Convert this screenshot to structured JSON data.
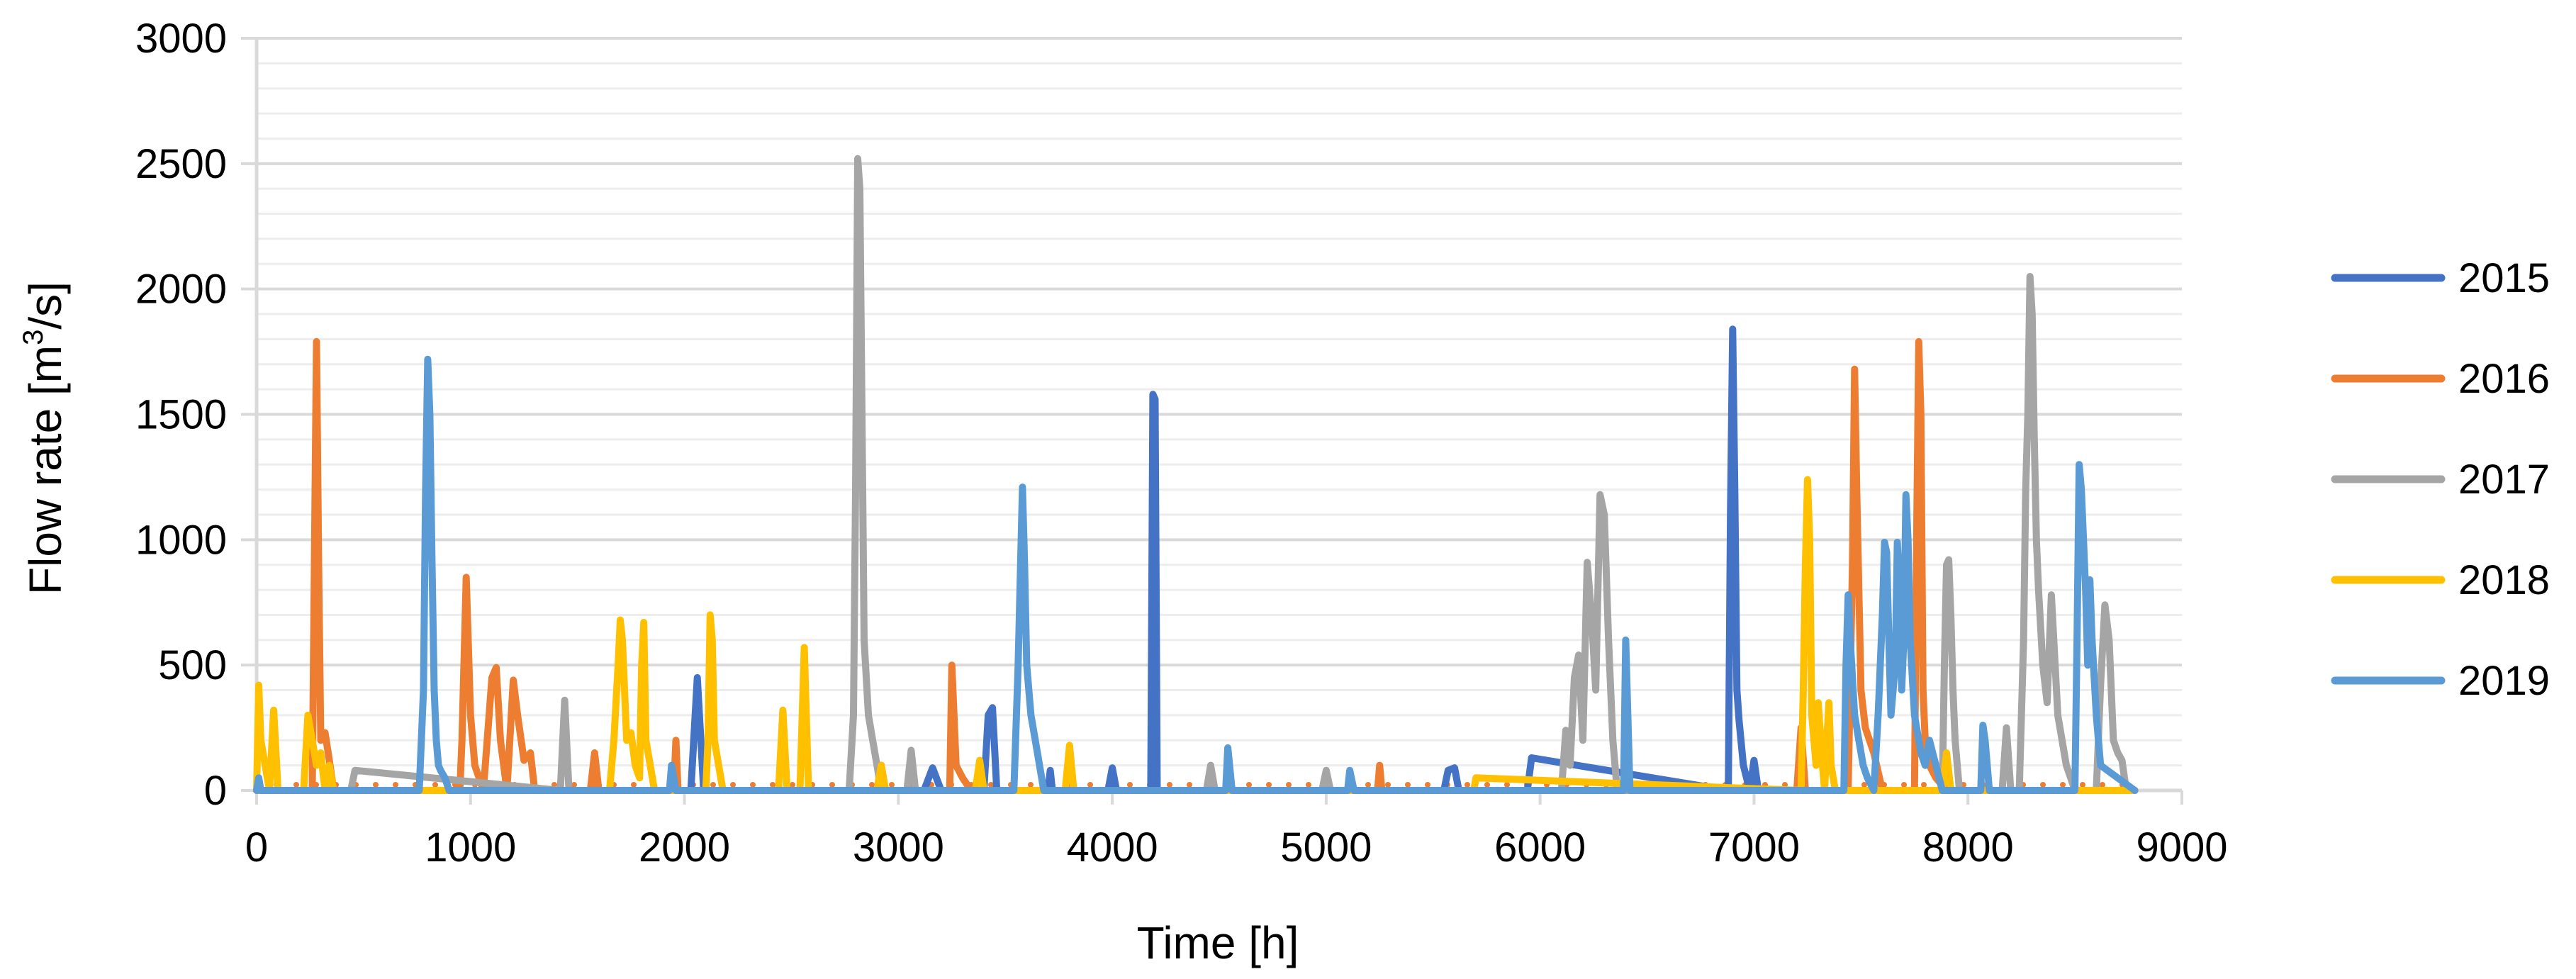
{
  "chart_data": {
    "type": "line",
    "title": "",
    "xlabel": "Time [h]",
    "ylabel_main": "Flow rate  [m",
    "ylabel_sup": "3",
    "ylabel_end": "/s]",
    "xlim": [
      0,
      9000
    ],
    "ylim": [
      0,
      3000
    ],
    "x_ticks": [
      0,
      1000,
      2000,
      3000,
      4000,
      5000,
      6000,
      7000,
      8000,
      9000
    ],
    "x_tick_labels": [
      "0",
      "1000",
      "2000",
      "3000",
      "4000",
      "5000",
      "6000",
      "7000",
      "8000",
      "9000"
    ],
    "y_ticks": [
      0,
      500,
      1000,
      1500,
      2000,
      2500,
      3000
    ],
    "y_tick_labels": [
      "0",
      "500",
      "1000",
      "1500",
      "2000",
      "2500",
      "3000"
    ],
    "y_minor_step": 100,
    "grid": true,
    "legend_position": "right",
    "baseline_dotted": true,
    "series": [
      {
        "name": "2015",
        "color": "#4472C4",
        "x": [
          0,
          2030,
          2060,
          2090,
          2120,
          2150,
          3120,
          3160,
          3200,
          3400,
          3420,
          3440,
          3460,
          3480,
          3700,
          3710,
          3720,
          3980,
          4000,
          4020,
          4180,
          4190,
          4200,
          4210,
          4230,
          5550,
          5570,
          5600,
          5620,
          5940,
          5960,
          6880,
          6890,
          6900,
          6910,
          6920,
          6930,
          6950,
          6980,
          7000,
          7020,
          7050,
          8780
        ],
        "y": [
          0,
          0,
          450,
          0,
          0,
          0,
          0,
          90,
          0,
          0,
          300,
          330,
          0,
          0,
          0,
          80,
          0,
          0,
          90,
          0,
          0,
          1580,
          1560,
          0,
          0,
          0,
          80,
          90,
          0,
          0,
          130,
          0,
          1100,
          1840,
          1200,
          400,
          280,
          100,
          0,
          120,
          0,
          0,
          0
        ]
      },
      {
        "name": "2016",
        "color": "#ED7D31",
        "x": [
          0,
          260,
          270,
          280,
          290,
          300,
          320,
          340,
          360,
          950,
          960,
          980,
          1000,
          1020,
          1060,
          1100,
          1120,
          1140,
          1170,
          1200,
          1220,
          1250,
          1280,
          1300,
          1330,
          1560,
          1580,
          1600,
          1950,
          1960,
          1970,
          2900,
          2920,
          2940,
          3240,
          3250,
          3260,
          3270,
          3300,
          3340,
          5240,
          5250,
          5260,
          7200,
          7220,
          7240,
          7440,
          7460,
          7470,
          7480,
          7500,
          7520,
          7560,
          7600,
          7750,
          7760,
          7770,
          7780,
          7790,
          7800,
          7820,
          7850,
          7900,
          8780
        ],
        "y": [
          0,
          0,
          900,
          1790,
          900,
          200,
          230,
          120,
          0,
          0,
          200,
          850,
          300,
          100,
          0,
          450,
          490,
          200,
          0,
          440,
          300,
          120,
          150,
          0,
          0,
          0,
          150,
          0,
          0,
          200,
          0,
          0,
          100,
          0,
          0,
          500,
          300,
          100,
          50,
          0,
          0,
          100,
          0,
          0,
          250,
          0,
          0,
          900,
          1680,
          1200,
          400,
          250,
          150,
          0,
          0,
          1000,
          1790,
          1500,
          400,
          200,
          100,
          50,
          0,
          0
        ]
      },
      {
        "name": "2017",
        "color": "#A5A5A5",
        "x": [
          0,
          440,
          460,
          1420,
          1440,
          1460,
          2770,
          2790,
          2800,
          2810,
          2820,
          2830,
          2840,
          2860,
          2880,
          2900,
          2920,
          3040,
          3060,
          3080,
          4440,
          4460,
          4480,
          4980,
          5000,
          5020,
          6100,
          6120,
          6140,
          6160,
          6180,
          6200,
          6220,
          6240,
          6260,
          6280,
          6300,
          6320,
          6340,
          6360,
          7880,
          7890,
          7900,
          7910,
          7920,
          7930,
          7940,
          7960,
          8160,
          8180,
          8200,
          8240,
          8260,
          8270,
          8280,
          8290,
          8300,
          8310,
          8320,
          8330,
          8350,
          8370,
          8390,
          8420,
          8440,
          8460,
          8480,
          8500,
          8600,
          8620,
          8640,
          8660,
          8680,
          8700,
          8720,
          8740,
          8780
        ],
        "y": [
          0,
          0,
          80,
          0,
          360,
          0,
          0,
          300,
          1200,
          2520,
          2400,
          1500,
          600,
          300,
          200,
          100,
          0,
          0,
          160,
          0,
          0,
          100,
          0,
          0,
          80,
          0,
          0,
          240,
          100,
          450,
          540,
          200,
          910,
          700,
          400,
          1180,
          1100,
          600,
          200,
          0,
          0,
          500,
          900,
          920,
          700,
          400,
          200,
          0,
          0,
          250,
          0,
          0,
          600,
          1200,
          1500,
          2050,
          1900,
          1400,
          1000,
          800,
          500,
          350,
          780,
          300,
          200,
          100,
          50,
          0,
          0,
          420,
          740,
          600,
          200,
          150,
          120,
          0,
          0
        ]
      },
      {
        "name": "2018",
        "color": "#FFC000",
        "x": [
          0,
          10,
          20,
          40,
          60,
          80,
          100,
          120,
          220,
          240,
          260,
          280,
          300,
          320,
          340,
          360,
          1650,
          1670,
          1690,
          1700,
          1710,
          1730,
          1750,
          1770,
          1790,
          1800,
          1810,
          1820,
          1840,
          1860,
          1880,
          2100,
          2110,
          2120,
          2130,
          2140,
          2160,
          2180,
          2440,
          2460,
          2480,
          2540,
          2560,
          2580,
          2900,
          2920,
          2940,
          3360,
          3380,
          3400,
          3780,
          3800,
          3820,
          5690,
          5700,
          7220,
          7230,
          7240,
          7250,
          7260,
          7270,
          7290,
          7300,
          7320,
          7330,
          7340,
          7350,
          7360,
          7380,
          7880,
          7900,
          7920,
          8780
        ],
        "y": [
          0,
          420,
          200,
          100,
          0,
          320,
          0,
          0,
          0,
          300,
          200,
          100,
          150,
          0,
          100,
          0,
          0,
          200,
          500,
          680,
          600,
          200,
          230,
          100,
          50,
          500,
          670,
          200,
          100,
          0,
          0,
          0,
          200,
          700,
          600,
          200,
          100,
          0,
          0,
          320,
          0,
          0,
          570,
          0,
          0,
          100,
          0,
          0,
          120,
          0,
          0,
          180,
          0,
          0,
          50,
          0,
          400,
          900,
          1240,
          1000,
          300,
          100,
          350,
          100,
          0,
          200,
          350,
          100,
          0,
          0,
          150,
          0,
          0
        ]
      },
      {
        "name": "2019",
        "color": "#5B9BD5",
        "x": [
          0,
          10,
          20,
          760,
          780,
          790,
          800,
          810,
          820,
          830,
          840,
          850,
          860,
          880,
          900,
          1930,
          1940,
          1960,
          3540,
          3560,
          3570,
          3580,
          3590,
          3600,
          3620,
          3640,
          3660,
          3680,
          4530,
          4540,
          4560,
          5100,
          5110,
          5130,
          6390,
          6400,
          6410,
          6420,
          7420,
          7430,
          7440,
          7450,
          7470,
          7490,
          7510,
          7530,
          7560,
          7580,
          7600,
          7610,
          7620,
          7630,
          7640,
          7660,
          7670,
          7680,
          7690,
          7700,
          7710,
          7720,
          7730,
          7750,
          7780,
          7800,
          7820,
          7850,
          7880,
          8060,
          8070,
          8080,
          8100,
          8500,
          8510,
          8520,
          8530,
          8540,
          8550,
          8560,
          8570,
          8580,
          8600,
          8620,
          8780
        ],
        "y": [
          0,
          50,
          0,
          0,
          400,
          1200,
          1720,
          1500,
          900,
          400,
          200,
          100,
          80,
          50,
          0,
          0,
          100,
          0,
          0,
          500,
          850,
          1210,
          900,
          500,
          300,
          200,
          100,
          0,
          0,
          170,
          0,
          0,
          80,
          0,
          0,
          600,
          300,
          0,
          0,
          500,
          780,
          600,
          300,
          200,
          100,
          50,
          0,
          300,
          700,
          990,
          950,
          600,
          300,
          500,
          990,
          800,
          400,
          600,
          1180,
          1000,
          600,
          300,
          150,
          100,
          200,
          100,
          0,
          0,
          260,
          200,
          0,
          0,
          600,
          1300,
          1200,
          1000,
          800,
          500,
          840,
          600,
          300,
          100,
          0
        ]
      }
    ]
  }
}
